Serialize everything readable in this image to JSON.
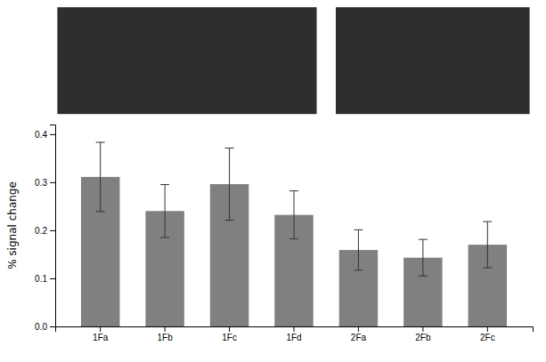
{
  "chart_data": {
    "type": "bar",
    "categories": [
      "1Fa",
      "1Fb",
      "1Fc",
      "1Fd",
      "2Fa",
      "2Fb",
      "2Fc"
    ],
    "values": [
      0.311,
      0.24,
      0.296,
      0.232,
      0.159,
      0.143,
      0.17
    ],
    "errors": [
      0.072,
      0.055,
      0.075,
      0.05,
      0.042,
      0.038,
      0.048
    ],
    "color": "#808080",
    "y_label": "% signal change",
    "ylim": [
      0.0,
      0.42
    ],
    "yticks": [
      {
        "value": 0.0,
        "label": "0.0"
      },
      0.1,
      0.2,
      0.3,
      0.4
    ],
    "grid": false
  }
}
